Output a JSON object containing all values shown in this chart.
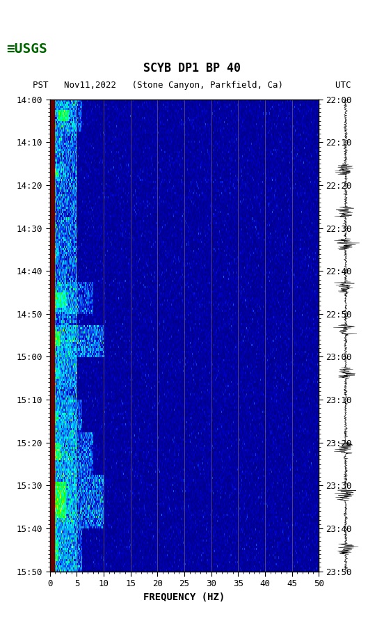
{
  "title_line1": "SCYB DP1 BP 40",
  "title_line2": "PST   Nov11,2022   (Stone Canyon, Parkfield, Ca)          UTC",
  "xlabel": "FREQUENCY (HZ)",
  "ylabel_left": "PST",
  "ylabel_right": "UTC",
  "freq_min": 0,
  "freq_max": 50,
  "time_start_pst": "14:00",
  "time_end_pst": "15:50",
  "time_start_utc": "22:00",
  "time_end_utc": "23:50",
  "yticks_pst": [
    "14:00",
    "14:10",
    "14:20",
    "14:30",
    "14:40",
    "14:50",
    "15:00",
    "15:10",
    "15:20",
    "15:30",
    "15:40",
    "15:50"
  ],
  "yticks_utc": [
    "22:00",
    "22:10",
    "22:20",
    "22:30",
    "22:40",
    "22:50",
    "23:00",
    "23:10",
    "23:20",
    "23:30",
    "23:40",
    "23:50"
  ],
  "xticks": [
    0,
    5,
    10,
    15,
    20,
    25,
    30,
    35,
    40,
    45,
    50
  ],
  "vline_freqs": [
    5,
    10,
    15,
    20,
    25,
    30,
    35,
    40,
    45
  ],
  "bg_color": "#ffffff",
  "spectrogram_left_band_color": "#8B0000",
  "fig_width": 5.52,
  "fig_height": 8.92
}
